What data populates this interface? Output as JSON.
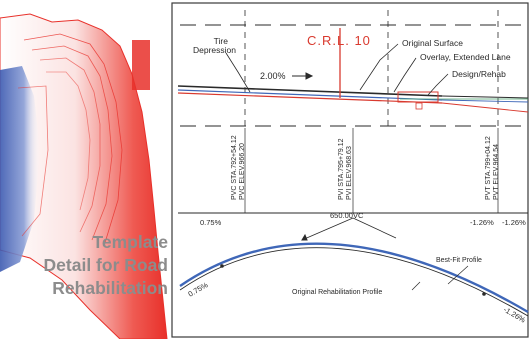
{
  "caption": {
    "lines": [
      "Template",
      "Detail for Road",
      "Rehabilitation"
    ]
  },
  "section": {
    "crl_label": "C.R.L. 10",
    "tire_depression_label": "Tire\nDepression",
    "original_surface_label": "Original Surface",
    "overlay_label": "Overlay, Extended Lane",
    "design_rehab_label": "Design/Rehab",
    "slope_label": "2.00%"
  },
  "profile": {
    "stations": [
      {
        "sta": "PVC STA.792+54.12",
        "elev": "PVC ELEV.966.20"
      },
      {
        "sta": "PVI STA.795+79.12",
        "elev": "PVI ELEV.968.63"
      },
      {
        "sta": "PVT STA.799+04.12",
        "elev": "PVT ELEV.964.54"
      }
    ],
    "grade_left": "0.75%",
    "vc_length": "650.00VC",
    "grade_right_1": "-1.26%",
    "grade_right_2": "-1.26%",
    "curve_grade_left": "0.75%",
    "curve_grade_right": "-1.26%",
    "best_fit_label": "Best-Fit Profile",
    "original_rehab_label": "Original Rehabilitation Profile"
  },
  "colors": {
    "hot": "#e8302a",
    "cold": "#3b59b0",
    "line": "#2a2a2a",
    "red_line": "#d93a2f",
    "blue_line": "#3f67b8",
    "caption": "#8c8c8c"
  }
}
